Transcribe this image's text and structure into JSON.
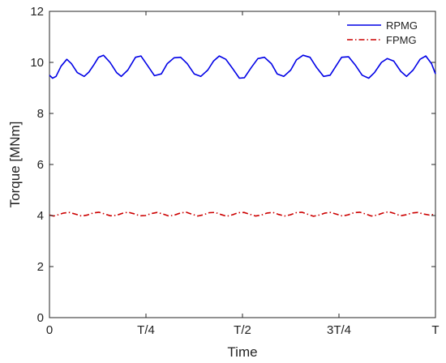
{
  "chart_data": {
    "type": "line",
    "xlabel": "Time",
    "ylabel": "Torque [MNm]",
    "x_range": [
      0,
      1
    ],
    "ylim": [
      0,
      12
    ],
    "x_ticks": [
      {
        "value": 0,
        "label": "0"
      },
      {
        "value": 0.25,
        "label": "T/4"
      },
      {
        "value": 0.5,
        "label": "T/2"
      },
      {
        "value": 0.75,
        "label": "3T/4"
      },
      {
        "value": 1,
        "label": "T"
      }
    ],
    "y_ticks": [
      {
        "value": 0,
        "label": "0"
      },
      {
        "value": 2,
        "label": "2"
      },
      {
        "value": 4,
        "label": "4"
      },
      {
        "value": 6,
        "label": "6"
      },
      {
        "value": 8,
        "label": "8"
      },
      {
        "value": 10,
        "label": "10"
      },
      {
        "value": 12,
        "label": "12"
      }
    ],
    "grid": false,
    "legend_position": "top-right",
    "series": [
      {
        "name": "RPMG",
        "color": "#0000e6",
        "line_style": "solid",
        "x": [
          0,
          0.008,
          0.017,
          0.03,
          0.045,
          0.057,
          0.072,
          0.09,
          0.102,
          0.115,
          0.127,
          0.14,
          0.157,
          0.174,
          0.186,
          0.203,
          0.223,
          0.237,
          0.253,
          0.272,
          0.29,
          0.305,
          0.323,
          0.34,
          0.357,
          0.375,
          0.392,
          0.41,
          0.425,
          0.44,
          0.457,
          0.475,
          0.492,
          0.505,
          0.523,
          0.54,
          0.557,
          0.575,
          0.59,
          0.607,
          0.625,
          0.64,
          0.657,
          0.675,
          0.692,
          0.71,
          0.727,
          0.742,
          0.757,
          0.775,
          0.792,
          0.81,
          0.827,
          0.842,
          0.86,
          0.875,
          0.892,
          0.91,
          0.925,
          0.942,
          0.96,
          0.975,
          0.99,
          1.0
        ],
        "y": [
          9.5,
          9.38,
          9.45,
          9.85,
          10.12,
          9.95,
          9.6,
          9.45,
          9.62,
          9.9,
          10.2,
          10.28,
          10.0,
          9.6,
          9.45,
          9.7,
          10.2,
          10.25,
          9.9,
          9.48,
          9.55,
          9.95,
          10.18,
          10.2,
          9.95,
          9.55,
          9.45,
          9.7,
          10.05,
          10.25,
          10.12,
          9.75,
          9.38,
          9.4,
          9.8,
          10.15,
          10.2,
          9.95,
          9.55,
          9.45,
          9.7,
          10.1,
          10.28,
          10.2,
          9.8,
          9.45,
          9.5,
          9.85,
          10.2,
          10.22,
          9.9,
          9.5,
          9.38,
          9.6,
          10.0,
          10.15,
          10.05,
          9.65,
          9.45,
          9.7,
          10.12,
          10.25,
          9.95,
          9.55
        ]
      },
      {
        "name": "FPMG",
        "color": "#cc0000",
        "line_style": "dash-dot",
        "x": [
          0,
          0.011,
          0.022,
          0.037,
          0.052,
          0.068,
          0.083,
          0.098,
          0.113,
          0.128,
          0.143,
          0.158,
          0.174,
          0.189,
          0.204,
          0.219,
          0.234,
          0.249,
          0.264,
          0.279,
          0.294,
          0.309,
          0.324,
          0.339,
          0.354,
          0.369,
          0.384,
          0.399,
          0.414,
          0.429,
          0.444,
          0.459,
          0.474,
          0.489,
          0.504,
          0.519,
          0.534,
          0.549,
          0.564,
          0.579,
          0.594,
          0.609,
          0.624,
          0.639,
          0.654,
          0.669,
          0.684,
          0.699,
          0.714,
          0.729,
          0.744,
          0.759,
          0.774,
          0.789,
          0.804,
          0.819,
          0.834,
          0.849,
          0.864,
          0.879,
          0.894,
          0.909,
          0.924,
          0.939,
          0.954,
          0.969,
          0.984,
          1.0
        ],
        "y": [
          4.02,
          3.98,
          4.03,
          4.1,
          4.12,
          4.05,
          3.98,
          4.02,
          4.1,
          4.13,
          4.06,
          3.99,
          4.01,
          4.09,
          4.13,
          4.07,
          3.99,
          4.0,
          4.08,
          4.12,
          4.06,
          3.98,
          4.02,
          4.1,
          4.13,
          4.05,
          3.98,
          4.03,
          4.11,
          4.12,
          4.04,
          3.97,
          4.03,
          4.11,
          4.12,
          4.05,
          3.98,
          4.02,
          4.1,
          4.12,
          4.04,
          3.98,
          4.03,
          4.11,
          4.13,
          4.05,
          3.97,
          4.02,
          4.1,
          4.12,
          4.05,
          3.98,
          4.03,
          4.11,
          4.13,
          4.06,
          3.98,
          4.02,
          4.1,
          4.15,
          4.08,
          3.99,
          4.03,
          4.1,
          4.12,
          4.06,
          4.02,
          4.05
        ]
      }
    ]
  }
}
